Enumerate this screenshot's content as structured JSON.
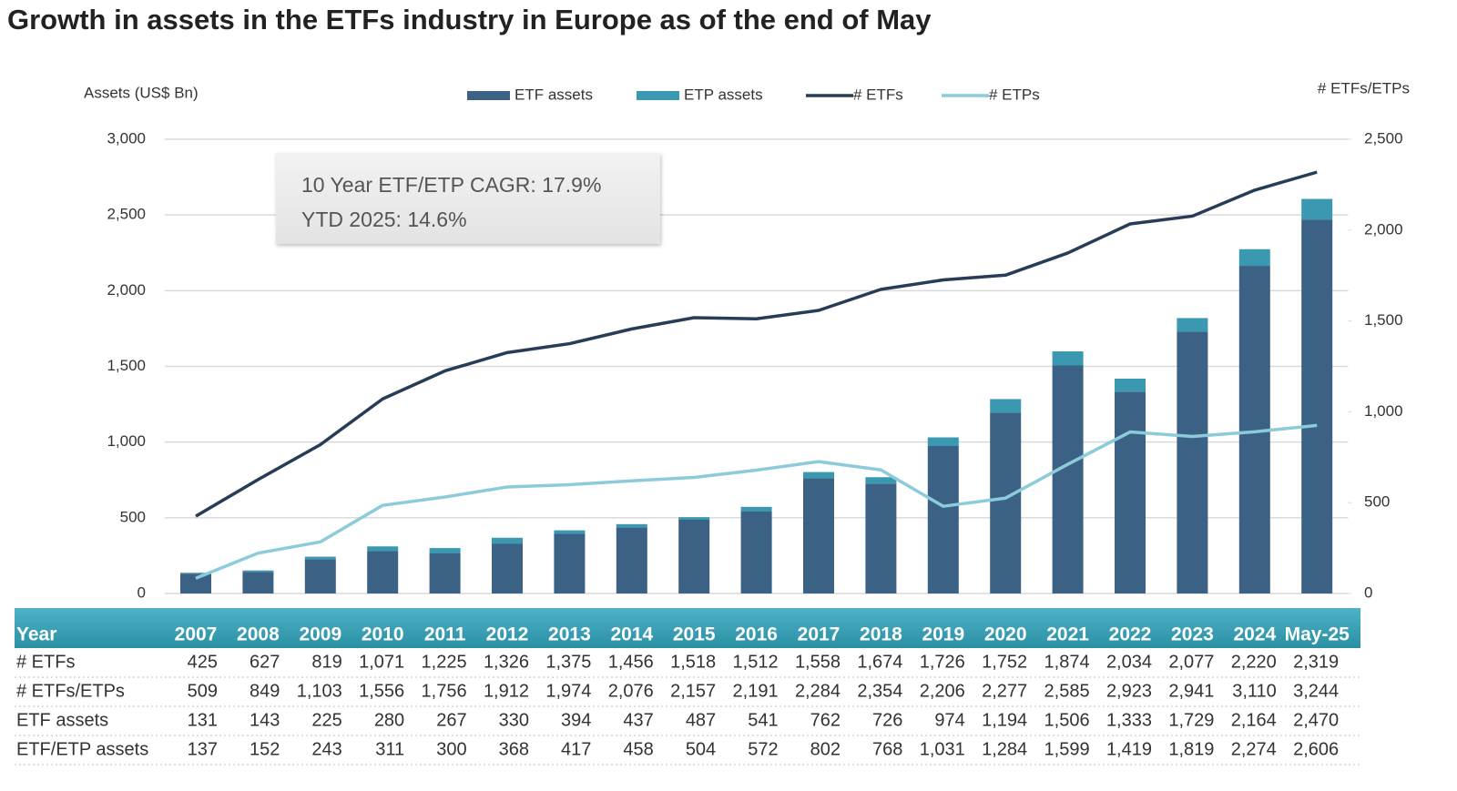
{
  "chart_data": {
    "type": "bar",
    "title": "Growth in assets in the ETFs industry in Europe as of the end of May",
    "y_label": "Assets (US$ Bn)",
    "y2_label": "# ETFs/ETPs",
    "annotation": [
      "10 Year ETF/ETP CAGR: 17.9%",
      "YTD 2025: 14.6%"
    ],
    "categories": [
      "2007",
      "2008",
      "2009",
      "2010",
      "2011",
      "2012",
      "2013",
      "2014",
      "2015",
      "2016",
      "2017",
      "2018",
      "2019",
      "2020",
      "2021",
      "2022",
      "2023",
      "2024",
      "May-25"
    ],
    "stacked": true,
    "grid": true,
    "legend": "top",
    "series": [
      {
        "name": "ETF assets",
        "kind": "bar",
        "color": "#3b6185",
        "values": [
          131,
          143,
          225,
          280,
          267,
          330,
          394,
          437,
          487,
          541,
          762,
          726,
          974,
          1194,
          1506,
          1333,
          1729,
          2164,
          2470
        ]
      },
      {
        "name": "ETP assets",
        "kind": "bar",
        "color": "#3a98b0",
        "values": [
          6,
          9,
          18,
          31,
          33,
          38,
          23,
          21,
          17,
          31,
          40,
          42,
          57,
          90,
          93,
          86,
          90,
          110,
          136
        ]
      },
      {
        "name": "# ETFs",
        "kind": "line",
        "axis": "y2",
        "color": "#263d57",
        "values": [
          425,
          627,
          819,
          1071,
          1225,
          1326,
          1375,
          1456,
          1518,
          1512,
          1558,
          1674,
          1726,
          1752,
          1874,
          2034,
          2077,
          2220,
          2319
        ]
      },
      {
        "name": "# ETPs",
        "kind": "line",
        "axis": "y2",
        "color": "#8ccbda",
        "values": [
          84,
          222,
          284,
          485,
          531,
          586,
          599,
          620,
          639,
          679,
          726,
          680,
          480,
          525,
          711,
          889,
          864,
          890,
          925
        ]
      }
    ],
    "ylim": [
      0,
      3000
    ],
    "yticks": [
      0,
      500,
      {
        "value": 1000,
        "label": "1,000"
      },
      {
        "value": 1500,
        "label": "1,500"
      },
      {
        "value": 2000,
        "label": "2,000"
      },
      {
        "value": 2500,
        "label": "2,500"
      },
      {
        "value": 3000,
        "label": "3,000"
      }
    ],
    "y2lim": [
      0,
      2500
    ],
    "y2ticks": [
      0,
      500,
      {
        "value": 1000,
        "label": "1,000"
      },
      {
        "value": 1500,
        "label": "1,500"
      },
      {
        "value": 2000,
        "label": "2,000"
      },
      {
        "value": 2500,
        "label": "2,500"
      }
    ]
  },
  "table": {
    "header_label": "Year",
    "rows": [
      {
        "label": "# ETFs",
        "cells": [
          "425",
          "627",
          "819",
          "1,071",
          "1,225",
          "1,326",
          "1,375",
          "1,456",
          "1,518",
          "1,512",
          "1,558",
          "1,674",
          "1,726",
          "1,752",
          "1,874",
          "2,034",
          "2,077",
          "2,220",
          "2,319"
        ]
      },
      {
        "label": "# ETFs/ETPs",
        "cells": [
          "509",
          "849",
          "1,103",
          "1,556",
          "1,756",
          "1,912",
          "1,974",
          "2,076",
          "2,157",
          "2,191",
          "2,284",
          "2,354",
          "2,206",
          "2,277",
          "2,585",
          "2,923",
          "2,941",
          "3,110",
          "3,244"
        ]
      },
      {
        "label": "ETF assets",
        "cells": [
          "131",
          "143",
          "225",
          "280",
          "267",
          "330",
          "394",
          "437",
          "487",
          "541",
          "762",
          "726",
          "974",
          "1,194",
          "1,506",
          "1,333",
          "1,729",
          "2,164",
          "2,470"
        ]
      },
      {
        "label": "ETF/ETP assets",
        "cells": [
          "137",
          "152",
          "243",
          "311",
          "300",
          "368",
          "417",
          "458",
          "504",
          "572",
          "802",
          "768",
          "1,031",
          "1,284",
          "1,599",
          "1,419",
          "1,819",
          "2,274",
          "2,606"
        ]
      }
    ]
  }
}
